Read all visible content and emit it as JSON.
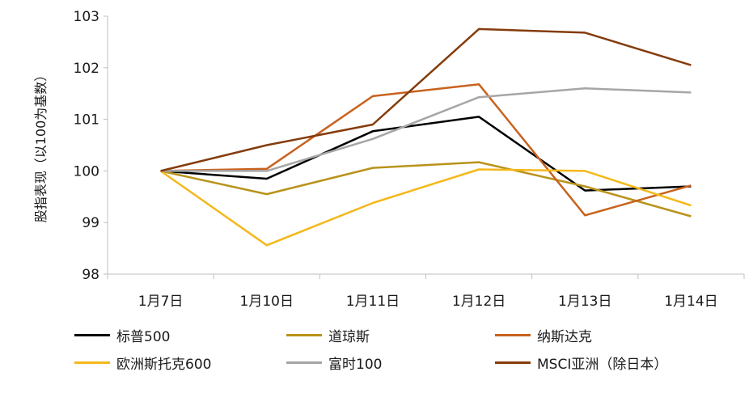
{
  "chart_data": {
    "type": "line",
    "title": "",
    "xlabel": "",
    "ylabel": "股指表现（以100为基数）",
    "categories": [
      "1月7日",
      "1月10日",
      "1月11日",
      "1月12日",
      "1月13日",
      "1月14日"
    ],
    "ylim": [
      98,
      103
    ],
    "yticks": [
      98,
      99,
      100,
      101,
      102,
      103
    ],
    "grid": false,
    "legend_position": "bottom",
    "series": [
      {
        "name": "标普500",
        "color": "#000000",
        "values": [
          100,
          99.85,
          100.77,
          101.05,
          99.62,
          99.7
        ]
      },
      {
        "name": "道琼斯",
        "color": "#B8931A",
        "values": [
          100,
          99.55,
          100.06,
          100.17,
          99.7,
          99.12
        ]
      },
      {
        "name": "纳斯达克",
        "color": "#C8621E",
        "values": [
          100,
          100.04,
          101.45,
          101.68,
          99.14,
          99.72
        ]
      },
      {
        "name": "欧洲斯托克600",
        "color": "#F4B81A",
        "values": [
          100,
          98.56,
          99.38,
          100.03,
          100.0,
          99.33
        ]
      },
      {
        "name": "富时100",
        "color": "#A6A6A6",
        "values": [
          100,
          100.0,
          100.62,
          101.43,
          101.6,
          101.52
        ]
      },
      {
        "name": "MSCI亚洲（除日本）",
        "color": "#843C0C",
        "values": [
          100,
          100.5,
          100.9,
          102.75,
          102.68,
          102.05
        ]
      }
    ]
  }
}
